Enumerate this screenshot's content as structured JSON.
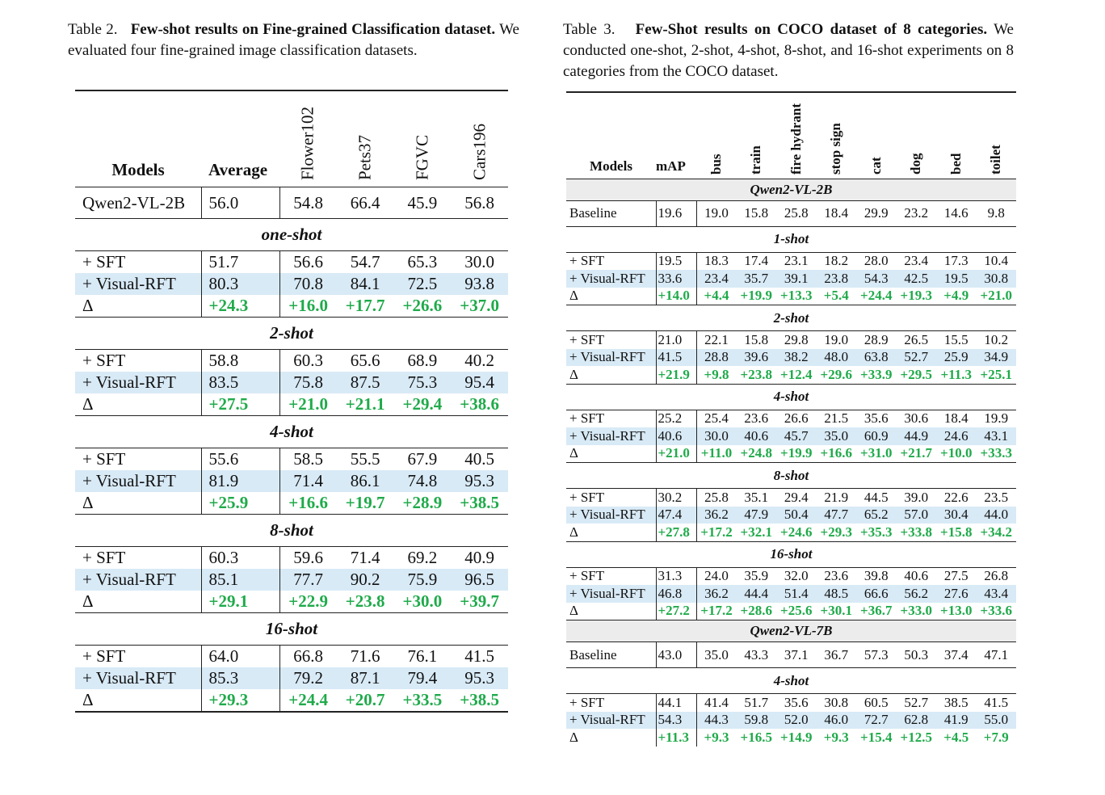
{
  "table2": {
    "caption_label": "Table 2.",
    "caption_bold": "Few-shot results on Fine-grained Classification dataset.",
    "caption_rest": "We evaluated four fine-grained image classification datasets.",
    "headers": [
      "Models",
      "Average",
      "Flower102",
      "Pets37",
      "FGVC",
      "Cars196"
    ],
    "baseline": {
      "model": "Qwen2-VL-2B",
      "values": [
        "56.0",
        "54.8",
        "66.4",
        "45.9",
        "56.8"
      ]
    },
    "sections": [
      {
        "title": "one-shot",
        "rows": [
          {
            "model": "+ SFT",
            "values": [
              "51.7",
              "56.6",
              "54.7",
              "65.3",
              "30.0"
            ]
          },
          {
            "model": "+ Visual-RFT",
            "values": [
              "80.3",
              "70.8",
              "84.1",
              "72.5",
              "93.8"
            ]
          },
          {
            "model": "Δ",
            "values": [
              "+24.3",
              "+16.0",
              "+17.7",
              "+26.6",
              "+37.0"
            ]
          }
        ]
      },
      {
        "title": "2-shot",
        "rows": [
          {
            "model": "+ SFT",
            "values": [
              "58.8",
              "60.3",
              "65.6",
              "68.9",
              "40.2"
            ]
          },
          {
            "model": "+ Visual-RFT",
            "values": [
              "83.5",
              "75.8",
              "87.5",
              "75.3",
              "95.4"
            ]
          },
          {
            "model": "Δ",
            "values": [
              "+27.5",
              "+21.0",
              "+21.1",
              "+29.4",
              "+38.6"
            ]
          }
        ]
      },
      {
        "title": "4-shot",
        "rows": [
          {
            "model": "+ SFT",
            "values": [
              "55.6",
              "58.5",
              "55.5",
              "67.9",
              "40.5"
            ]
          },
          {
            "model": "+ Visual-RFT",
            "values": [
              "81.9",
              "71.4",
              "86.1",
              "74.8",
              "95.3"
            ]
          },
          {
            "model": "Δ",
            "values": [
              "+25.9",
              "+16.6",
              "+19.7",
              "+28.9",
              "+38.5"
            ]
          }
        ]
      },
      {
        "title": "8-shot",
        "rows": [
          {
            "model": "+ SFT",
            "values": [
              "60.3",
              "59.6",
              "71.4",
              "69.2",
              "40.9"
            ]
          },
          {
            "model": "+ Visual-RFT",
            "values": [
              "85.1",
              "77.7",
              "90.2",
              "75.9",
              "96.5"
            ]
          },
          {
            "model": "Δ",
            "values": [
              "+29.1",
              "+22.9",
              "+23.8",
              "+30.0",
              "+39.7"
            ]
          }
        ]
      },
      {
        "title": "16-shot",
        "rows": [
          {
            "model": "+ SFT",
            "values": [
              "64.0",
              "66.8",
              "71.6",
              "76.1",
              "41.5"
            ]
          },
          {
            "model": "+ Visual-RFT",
            "values": [
              "85.3",
              "79.2",
              "87.1",
              "79.4",
              "95.3"
            ]
          },
          {
            "model": "Δ",
            "values": [
              "+29.3",
              "+24.4",
              "+20.7",
              "+33.5",
              "+38.5"
            ]
          }
        ]
      }
    ]
  },
  "table3": {
    "caption_label": "Table 3.",
    "caption_bold": "Few-Shot results on COCO dataset of 8 categories.",
    "caption_rest": "We conducted one-shot, 2-shot, 4-shot, 8-shot, and 16-shot experiments on 8 categories from the COCO dataset.",
    "headers": [
      "Models",
      "mAP",
      "bus",
      "train",
      "fire hydrant",
      "stop sign",
      "cat",
      "dog",
      "bed",
      "toilet"
    ],
    "groups": [
      {
        "title": "Qwen2-VL-2B",
        "baseline": {
          "model": "Baseline",
          "values": [
            "19.6",
            "19.0",
            "15.8",
            "25.8",
            "18.4",
            "29.9",
            "23.2",
            "14.6",
            "9.8"
          ]
        },
        "sections": [
          {
            "title": "1-shot",
            "rows": [
              {
                "model": "+ SFT",
                "values": [
                  "19.5",
                  "18.3",
                  "17.4",
                  "23.1",
                  "18.2",
                  "28.0",
                  "23.4",
                  "17.3",
                  "10.4"
                ]
              },
              {
                "model": "+ Visual-RFT",
                "values": [
                  "33.6",
                  "23.4",
                  "35.7",
                  "39.1",
                  "23.8",
                  "54.3",
                  "42.5",
                  "19.5",
                  "30.8"
                ]
              },
              {
                "model": "Δ",
                "values": [
                  "+14.0",
                  "+4.4",
                  "+19.9",
                  "+13.3",
                  "+5.4",
                  "+24.4",
                  "+19.3",
                  "+4.9",
                  "+21.0"
                ]
              }
            ]
          },
          {
            "title": "2-shot",
            "rows": [
              {
                "model": "+ SFT",
                "values": [
                  "21.0",
                  "22.1",
                  "15.8",
                  "29.8",
                  "19.0",
                  "28.9",
                  "26.5",
                  "15.5",
                  "10.2"
                ]
              },
              {
                "model": "+ Visual-RFT",
                "values": [
                  "41.5",
                  "28.8",
                  "39.6",
                  "38.2",
                  "48.0",
                  "63.8",
                  "52.7",
                  "25.9",
                  "34.9"
                ]
              },
              {
                "model": "Δ",
                "values": [
                  "+21.9",
                  "+9.8",
                  "+23.8",
                  "+12.4",
                  "+29.6",
                  "+33.9",
                  "+29.5",
                  "+11.3",
                  "+25.1"
                ]
              }
            ]
          },
          {
            "title": "4-shot",
            "rows": [
              {
                "model": "+ SFT",
                "values": [
                  "25.2",
                  "25.4",
                  "23.6",
                  "26.6",
                  "21.5",
                  "35.6",
                  "30.6",
                  "18.4",
                  "19.9"
                ]
              },
              {
                "model": "+ Visual-RFT",
                "values": [
                  "40.6",
                  "30.0",
                  "40.6",
                  "45.7",
                  "35.0",
                  "60.9",
                  "44.9",
                  "24.6",
                  "43.1"
                ]
              },
              {
                "model": "Δ",
                "values": [
                  "+21.0",
                  "+11.0",
                  "+24.8",
                  "+19.9",
                  "+16.6",
                  "+31.0",
                  "+21.7",
                  "+10.0",
                  "+33.3"
                ]
              }
            ]
          },
          {
            "title": "8-shot",
            "rows": [
              {
                "model": "+ SFT",
                "values": [
                  "30.2",
                  "25.8",
                  "35.1",
                  "29.4",
                  "21.9",
                  "44.5",
                  "39.0",
                  "22.6",
                  "23.5"
                ]
              },
              {
                "model": "+ Visual-RFT",
                "values": [
                  "47.4",
                  "36.2",
                  "47.9",
                  "50.4",
                  "47.7",
                  "65.2",
                  "57.0",
                  "30.4",
                  "44.0"
                ]
              },
              {
                "model": "Δ",
                "values": [
                  "+27.8",
                  "+17.2",
                  "+32.1",
                  "+24.6",
                  "+29.3",
                  "+35.3",
                  "+33.8",
                  "+15.8",
                  "+34.2"
                ]
              }
            ]
          },
          {
            "title": "16-shot",
            "rows": [
              {
                "model": "+ SFT",
                "values": [
                  "31.3",
                  "24.0",
                  "35.9",
                  "32.0",
                  "23.6",
                  "39.8",
                  "40.6",
                  "27.5",
                  "26.8"
                ]
              },
              {
                "model": "+ Visual-RFT",
                "values": [
                  "46.8",
                  "36.2",
                  "44.4",
                  "51.4",
                  "48.5",
                  "66.6",
                  "56.2",
                  "27.6",
                  "43.4"
                ]
              },
              {
                "model": "Δ",
                "values": [
                  "+27.2",
                  "+17.2",
                  "+28.6",
                  "+25.6",
                  "+30.1",
                  "+36.7",
                  "+33.0",
                  "+13.0",
                  "+33.6"
                ]
              }
            ]
          }
        ]
      },
      {
        "title": "Qwen2-VL-7B",
        "baseline": {
          "model": "Baseline",
          "values": [
            "43.0",
            "35.0",
            "43.3",
            "37.1",
            "36.7",
            "57.3",
            "50.3",
            "37.4",
            "47.1"
          ]
        },
        "sections": [
          {
            "title": "4-shot",
            "rows": [
              {
                "model": "+ SFT",
                "values": [
                  "44.1",
                  "41.4",
                  "51.7",
                  "35.6",
                  "30.8",
                  "60.5",
                  "52.7",
                  "38.5",
                  "41.5"
                ]
              },
              {
                "model": "+ Visual-RFT",
                "values": [
                  "54.3",
                  "44.3",
                  "59.8",
                  "52.0",
                  "46.0",
                  "72.7",
                  "62.8",
                  "41.9",
                  "55.0"
                ]
              },
              {
                "model": "Δ",
                "values": [
                  "+11.3",
                  "+9.3",
                  "+16.5",
                  "+14.9",
                  "+9.3",
                  "+15.4",
                  "+12.5",
                  "+4.5",
                  "+7.9"
                ]
              }
            ]
          }
        ]
      }
    ]
  },
  "colors": {
    "highlight_row": "#d8eaf6",
    "delta_text": "#1faa4a",
    "group_header": "#ececec"
  }
}
